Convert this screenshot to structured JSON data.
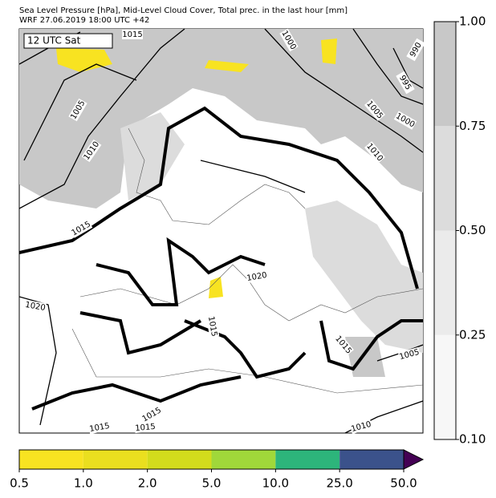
{
  "header": {
    "title": "Sea Level Pressure [hPa], Mid-Level Cloud Cover, Total prec. in the last hour [mm]",
    "subtitle": "WRF 27.06.2019 18:00 UTC +42"
  },
  "map": {
    "time_label": "12 UTC Sat",
    "isobar_labels": [
      "1015",
      "1000",
      "990",
      "995",
      "1005",
      "1005",
      "1000",
      "1010",
      "1010",
      "1015",
      "1020",
      "1020",
      "1015",
      "1015",
      "1005",
      "1015",
      "1015",
      "1015",
      "1010"
    ]
  },
  "cloud_colorbar": {
    "ticks": [
      {
        "value": 0.1,
        "label": "0.10"
      },
      {
        "value": 0.25,
        "label": "0.25"
      },
      {
        "value": 0.5,
        "label": "0.50"
      },
      {
        "value": 0.75,
        "label": "0.75"
      },
      {
        "value": 1,
        "label": "1.00"
      }
    ],
    "colors": [
      "#f7f7f7",
      "#ebebeb",
      "#dcdcdc",
      "#c8c8c8"
    ]
  },
  "precip_colorbar": {
    "ticks": [
      {
        "value": 0.5,
        "label": "0.5"
      },
      {
        "value": 1,
        "label": "1.0"
      },
      {
        "value": 2,
        "label": "2.0"
      },
      {
        "value": 5,
        "label": "5.0"
      },
      {
        "value": 10,
        "label": "10.0"
      },
      {
        "value": 25,
        "label": "25.0"
      },
      {
        "value": 50,
        "label": "50.0"
      }
    ],
    "colors": [
      "#f8e321",
      "#eadf1f",
      "#d3dc1c",
      "#a0d83a",
      "#2db57b",
      "#3b528b",
      "#440154"
    ]
  }
}
